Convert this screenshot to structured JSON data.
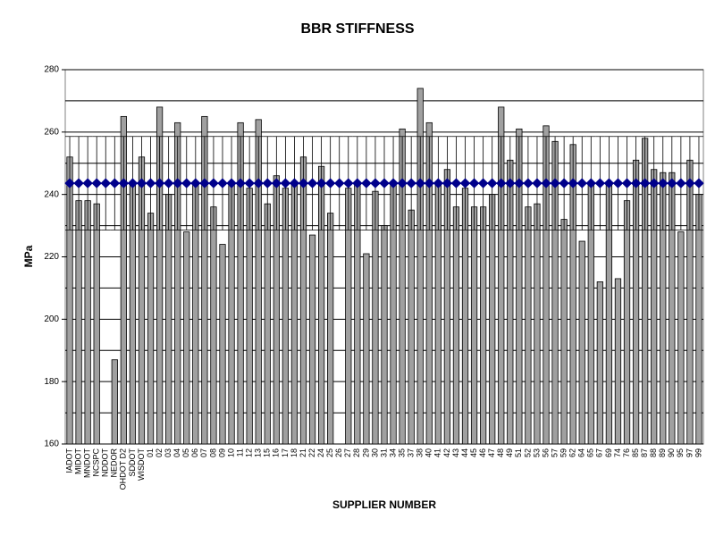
{
  "chart_data": {
    "type": "bar",
    "title": "BBR STIFFNESS",
    "x_label": "SUPPLIER NUMBER",
    "y_label": "MPa",
    "categories": [
      "IADOT",
      "MIDOT",
      "MNDOT",
      "NCSPC",
      "NDDOT",
      "NEDOR",
      "OHDOT D2",
      "SDDOT",
      "WISDOT",
      "01",
      "02",
      "03",
      "04",
      "05",
      "06",
      "07",
      "08",
      "09",
      "10",
      "11",
      "12",
      "13",
      "15",
      "16",
      "17",
      "18",
      "21",
      "22",
      "24",
      "25",
      "26",
      "27",
      "28",
      "29",
      "30",
      "31",
      "34",
      "35",
      "37",
      "38",
      "40",
      "41",
      "42",
      "43",
      "44",
      "45",
      "46",
      "47",
      "48",
      "49",
      "51",
      "52",
      "53",
      "56",
      "57",
      "59",
      "62",
      "64",
      "65",
      "67",
      "69",
      "74",
      "76",
      "85",
      "87",
      "88",
      "89",
      "90",
      "95",
      "97",
      "99"
    ],
    "series": [
      {
        "color": "#a0a0a0",
        "values": [
          252,
          238,
          238,
          237,
          null,
          187,
          265,
          243,
          252,
          234,
          268,
          240,
          263,
          228,
          243,
          265,
          236,
          224,
          243,
          263,
          242,
          264,
          237,
          246,
          242,
          243,
          252,
          227,
          249,
          234,
          null,
          242,
          243,
          221,
          241,
          230,
          243,
          261,
          235,
          274,
          263,
          243,
          248,
          236,
          242,
          236,
          236,
          240,
          268,
          251,
          261,
          236,
          237,
          262,
          257,
          232,
          256,
          225,
          243,
          212,
          243,
          213,
          238,
          251,
          258,
          248,
          247,
          247,
          228,
          251,
          240
        ]
      },
      {
        "color": "#00008b",
        "values": [
          243.6,
          243.6,
          243.6,
          243.6,
          243.6,
          243.6,
          243.6,
          243.6,
          243.6,
          243.6,
          243.6,
          243.6,
          243.6,
          243.6,
          243.6,
          243.6,
          243.6,
          243.6,
          243.6,
          243.6,
          243.6,
          243.6,
          243.6,
          243.6,
          243.6,
          243.6,
          243.6,
          243.6,
          243.6,
          243.6,
          243.6,
          243.6,
          243.6,
          243.6,
          243.6,
          243.6,
          243.6,
          243.6,
          243.6,
          243.6,
          243.6,
          243.6,
          243.6,
          243.6,
          243.6,
          243.6,
          243.6,
          243.6,
          243.6,
          243.6,
          243.6,
          243.6,
          243.6,
          243.6,
          243.6,
          243.6,
          243.6,
          243.6,
          243.6,
          243.6,
          243.6,
          243.6,
          243.6,
          243.6,
          243.6,
          243.6,
          243.6,
          243.6,
          243.6,
          243.6,
          243.6
        ],
        "errors": [
          15,
          15,
          15,
          15,
          15,
          15,
          15,
          15,
          15,
          15,
          15,
          15,
          15,
          15,
          15,
          15,
          15,
          15,
          15,
          15,
          15,
          15,
          15,
          15,
          15,
          15,
          15,
          15,
          15,
          15,
          15,
          15,
          15,
          15,
          15,
          15,
          15,
          15,
          15,
          15,
          15,
          15,
          15,
          15,
          15,
          15,
          15,
          15,
          15,
          15,
          15,
          15,
          15,
          15,
          15,
          15,
          15,
          15,
          15,
          15,
          15,
          15,
          15,
          15,
          15,
          15,
          15,
          15,
          15,
          15,
          15
        ]
      }
    ],
    "ylim": [
      160,
      280
    ],
    "yticks": [
      160,
      180,
      200,
      220,
      240,
      260,
      280
    ],
    "minor_yticks": [
      170,
      190,
      210,
      230,
      250,
      270
    ],
    "grid": true
  }
}
